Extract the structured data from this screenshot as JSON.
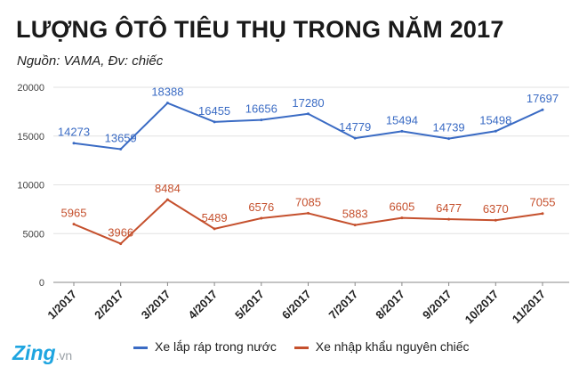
{
  "title": "LƯỢNG ÔTÔ TIÊU THỤ TRONG NĂM 2017",
  "subtitle": "Nguồn: VAMA, Đv: chiếc",
  "logo": {
    "main": "Zing",
    "suffix": ".vn"
  },
  "colors": {
    "assembled": "#3a6bc4",
    "imported": "#c5502d",
    "grid": "#e2e2e2",
    "axis": "#888888"
  },
  "chart_data": {
    "type": "line",
    "title": "LƯỢNG ÔTÔ TIÊU THỤ TRONG NĂM 2017",
    "categories": [
      "1/2017",
      "2/2017",
      "3/2017",
      "4/2017",
      "5/2017",
      "6/2017",
      "7/2017",
      "8/2017",
      "9/2017",
      "10/2017",
      "11/2017"
    ],
    "series": [
      {
        "name": "Xe lắp ráp trong nước",
        "values": [
          14273,
          13659,
          18388,
          16455,
          16656,
          17280,
          14779,
          15494,
          14739,
          15498,
          17697
        ]
      },
      {
        "name": "Xe nhập khẩu nguyên chiếc",
        "values": [
          5965,
          3966,
          8484,
          5489,
          6576,
          7085,
          5883,
          6605,
          6477,
          6370,
          7055
        ]
      }
    ],
    "yticks": [
      "0",
      "5000",
      "10000",
      "15000",
      "20000"
    ],
    "ylim": [
      0,
      20000
    ],
    "xlabel": "",
    "ylabel": "",
    "grid": true,
    "legend_position": "bottom",
    "data_labels": true
  }
}
